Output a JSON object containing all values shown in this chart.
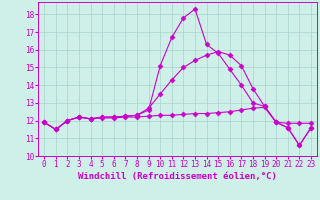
{
  "xlabel": "Windchill (Refroidissement éolien,°C)",
  "background_color": "#cef0e8",
  "grid_color": "#aad4cc",
  "line_color": "#cc00cc",
  "x": [
    0,
    1,
    2,
    3,
    4,
    5,
    6,
    7,
    8,
    9,
    10,
    11,
    12,
    13,
    14,
    15,
    16,
    17,
    18,
    19,
    20,
    21,
    22,
    23
  ],
  "series": [
    [
      11.9,
      11.5,
      12.0,
      12.2,
      12.1,
      12.2,
      12.2,
      12.25,
      12.3,
      12.6,
      15.1,
      16.7,
      17.8,
      18.3,
      16.3,
      15.8,
      14.9,
      14.0,
      13.0,
      12.8,
      11.9,
      11.6,
      10.6,
      11.6
    ],
    [
      11.9,
      11.5,
      12.0,
      12.2,
      12.1,
      12.15,
      12.15,
      12.2,
      12.2,
      12.25,
      12.3,
      12.3,
      12.35,
      12.4,
      12.4,
      12.45,
      12.5,
      12.6,
      12.7,
      12.75,
      11.9,
      11.85,
      11.85,
      11.85
    ],
    [
      11.9,
      11.5,
      12.0,
      12.2,
      12.1,
      12.2,
      12.2,
      12.25,
      12.3,
      12.7,
      13.5,
      14.3,
      15.0,
      15.4,
      15.7,
      15.9,
      15.7,
      15.1,
      13.8,
      12.8,
      11.9,
      11.6,
      10.6,
      11.6
    ]
  ],
  "ylim": [
    10,
    18.7
  ],
  "yticks": [
    10,
    11,
    12,
    13,
    14,
    15,
    16,
    17,
    18
  ],
  "xticks": [
    0,
    1,
    2,
    3,
    4,
    5,
    6,
    7,
    8,
    9,
    10,
    11,
    12,
    13,
    14,
    15,
    16,
    17,
    18,
    19,
    20,
    21,
    22,
    23
  ],
  "marker": "D",
  "markersize": 2.5,
  "linewidth": 0.8,
  "tick_fontsize": 5.5,
  "label_fontsize": 6.5
}
